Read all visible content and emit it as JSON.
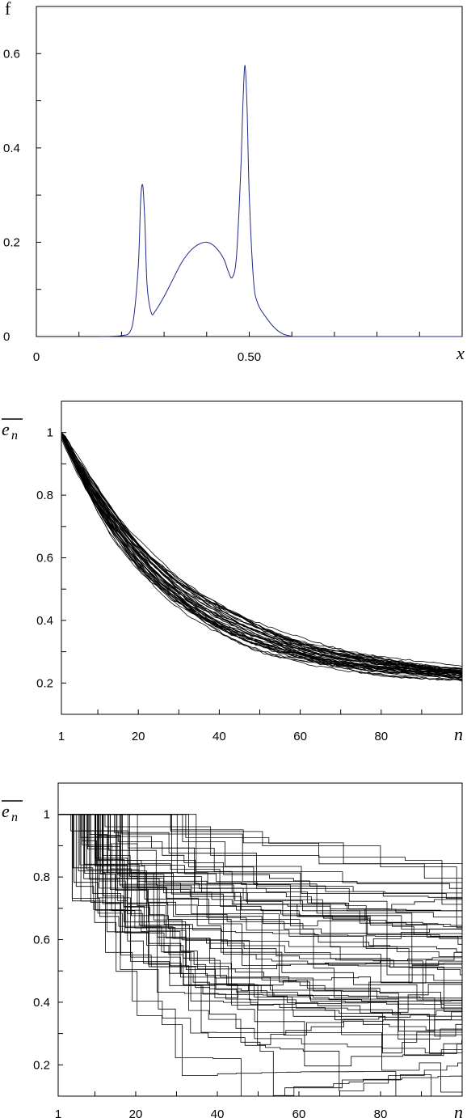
{
  "chart_data": [
    {
      "type": "line",
      "ylabel": "f",
      "xlabel": "x",
      "xlim": [
        0,
        1.0
      ],
      "ylim": [
        0,
        0.7
      ],
      "x_ticks": [
        0,
        0.1,
        0.2,
        0.3,
        0.4,
        0.5,
        0.6,
        0.7,
        0.8,
        0.9,
        1.0
      ],
      "x_tick_labels": [
        {
          "value": 0,
          "label": "0"
        },
        {
          "value": 0.5,
          "label": "0.50"
        }
      ],
      "y_ticks": [
        0,
        0.1,
        0.2,
        0.3,
        0.4,
        0.5,
        0.6
      ],
      "y_tick_labels": [
        {
          "value": 0,
          "label": "0"
        },
        {
          "value": 0.2,
          "label": "0.2"
        },
        {
          "value": 0.4,
          "label": "0.4"
        },
        {
          "value": 0.6,
          "label": "0.6"
        }
      ],
      "line_color": "#1f2a8a",
      "series": [
        {
          "x": [
            0.15,
            0.2,
            0.22,
            0.23,
            0.24,
            0.245,
            0.25,
            0.255,
            0.26,
            0.27,
            0.28,
            0.3,
            0.32,
            0.34,
            0.36,
            0.38,
            0.4,
            0.42,
            0.44,
            0.45,
            0.46,
            0.47,
            0.48,
            0.485,
            0.49,
            0.495,
            0.5,
            0.51,
            0.52,
            0.54,
            0.56,
            0.58,
            0.6,
            0.62,
            1.0
          ],
          "y": [
            0.0,
            0.002,
            0.01,
            0.05,
            0.16,
            0.29,
            0.32,
            0.24,
            0.11,
            0.05,
            0.055,
            0.085,
            0.12,
            0.155,
            0.18,
            0.195,
            0.2,
            0.19,
            0.165,
            0.14,
            0.125,
            0.17,
            0.35,
            0.49,
            0.575,
            0.48,
            0.3,
            0.12,
            0.07,
            0.04,
            0.018,
            0.005,
            0.001,
            0.0,
            0.0
          ]
        }
      ]
    },
    {
      "type": "line",
      "ylabel": "e",
      "ylabel_sub": "n",
      "xlabel": "n",
      "xlim": [
        1,
        100
      ],
      "ylim": [
        0.1,
        1.1
      ],
      "x_tick_labels": [
        {
          "value": 1,
          "label": "1"
        },
        {
          "value": 20,
          "label": "20"
        },
        {
          "value": 40,
          "label": "40"
        },
        {
          "value": 60,
          "label": "60"
        },
        {
          "value": 80,
          "label": "80"
        }
      ],
      "x_ticks": [
        10,
        20,
        30,
        40,
        50,
        60,
        70,
        80,
        90
      ],
      "y_ticks": [
        0.2,
        0.3,
        0.4,
        0.5,
        0.6,
        0.7,
        0.8,
        0.9,
        1.0
      ],
      "y_tick_labels": [
        {
          "value": 1.0,
          "label": "1"
        },
        {
          "value": 0.8,
          "label": "0.8"
        },
        {
          "value": 0.6,
          "label": "0.6"
        },
        {
          "value": 0.4,
          "label": "0.4"
        },
        {
          "value": 0.2,
          "label": "0.2"
        }
      ],
      "bundle": {
        "count": 40,
        "start": 1.0,
        "end_min": 0.19,
        "end_max": 0.22,
        "sample_mid": [
          {
            "n": 20,
            "low": 0.62,
            "high": 0.72
          },
          {
            "n": 40,
            "low": 0.35,
            "high": 0.4
          },
          {
            "n": 60,
            "low": 0.26,
            "high": 0.29
          }
        ]
      }
    },
    {
      "type": "line",
      "ylabel": "e",
      "ylabel_sub": "n",
      "xlabel": "n",
      "xlim": [
        1,
        100
      ],
      "ylim": [
        0.1,
        1.1
      ],
      "x_tick_labels": [
        {
          "value": 1,
          "label": "1"
        },
        {
          "value": 20,
          "label": "20"
        },
        {
          "value": 40,
          "label": "40"
        },
        {
          "value": 60,
          "label": "60"
        },
        {
          "value": 80,
          "label": "80"
        }
      ],
      "x_ticks": [
        10,
        20,
        30,
        40,
        50,
        60,
        70,
        80,
        90
      ],
      "y_ticks": [
        0.2,
        0.3,
        0.4,
        0.5,
        0.6,
        0.7,
        0.8,
        0.9,
        1.0
      ],
      "y_tick_labels": [
        {
          "value": 1.0,
          "label": "1"
        },
        {
          "value": 0.8,
          "label": "0.8"
        },
        {
          "value": 0.6,
          "label": "0.6"
        },
        {
          "value": 0.4,
          "label": "0.4"
        },
        {
          "value": 0.2,
          "label": "0.2"
        }
      ],
      "staircases": {
        "count": 60,
        "start": 1.0,
        "end_min": 0.1,
        "end_max": 1.0
      }
    }
  ]
}
